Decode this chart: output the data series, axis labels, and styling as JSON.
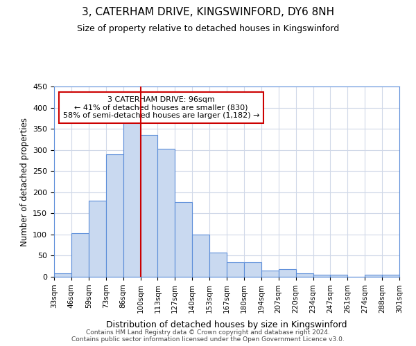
{
  "title": "3, CATERHAM DRIVE, KINGSWINFORD, DY6 8NH",
  "subtitle": "Size of property relative to detached houses in Kingswinford",
  "xlabel": "Distribution of detached houses by size in Kingswinford",
  "ylabel": "Number of detached properties",
  "bin_labels": [
    "33sqm",
    "46sqm",
    "59sqm",
    "73sqm",
    "86sqm",
    "100sqm",
    "113sqm",
    "127sqm",
    "140sqm",
    "153sqm",
    "167sqm",
    "180sqm",
    "194sqm",
    "207sqm",
    "220sqm",
    "234sqm",
    "247sqm",
    "261sqm",
    "274sqm",
    "288sqm",
    "301sqm"
  ],
  "bar_values": [
    8,
    103,
    180,
    290,
    367,
    335,
    303,
    177,
    100,
    58,
    35,
    35,
    15,
    18,
    8,
    5,
    5,
    0,
    5,
    5
  ],
  "bar_color": "#c9d9f0",
  "bar_edge_color": "#5b8dd9",
  "property_line_color": "#cc0000",
  "property_line_x": 4.5,
  "annotation_text": "3 CATERHAM DRIVE: 96sqm\n← 41% of detached houses are smaller (830)\n58% of semi-detached houses are larger (1,182) →",
  "annotation_box_color": "#ffffff",
  "annotation_box_edge": "#cc0000",
  "ylim": [
    0,
    450
  ],
  "yticks": [
    0,
    50,
    100,
    150,
    200,
    250,
    300,
    350,
    400,
    450
  ],
  "footer": "Contains HM Land Registry data © Crown copyright and database right 2024.\nContains public sector information licensed under the Open Government Licence v3.0.",
  "bg_color": "#ffffff",
  "grid_color": "#d0d8e8"
}
